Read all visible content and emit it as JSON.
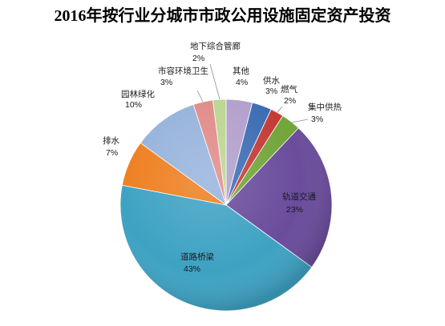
{
  "chart_data": {
    "type": "pie",
    "title": "2016年按行业分城市市政公用设施固定资产投资",
    "categories": [
      "其他",
      "供水",
      "燃气",
      "集中供热",
      "轨道交通",
      "道路桥梁",
      "排水",
      "园林绿化",
      "市容环境卫生",
      "地下综合管廊"
    ],
    "values": [
      4,
      3,
      2,
      3,
      23,
      43,
      7,
      10,
      3,
      2
    ],
    "data_labels": [
      "4%",
      "3%",
      "2%",
      "3%",
      "23%",
      "43%",
      "7%",
      "10%",
      "3%",
      "2%"
    ],
    "colors": [
      "#B1A0CC",
      "#3C6DB4",
      "#C43B36",
      "#72A53A",
      "#6A4C9C",
      "#3EA2C3",
      "#EE7F20",
      "#97B3DC",
      "#E08C89",
      "#BBD691"
    ]
  }
}
